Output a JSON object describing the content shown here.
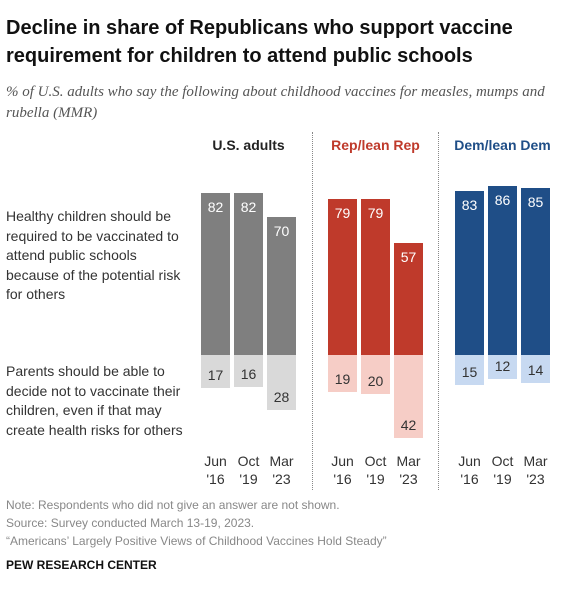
{
  "chart_data": {
    "type": "diverging-bar",
    "title": "Decline in share of Republicans who support vaccine requirement for children to attend public schools",
    "subtitle": "% of U.S. adults who say the following about childhood vaccines for measles, mumps and rubella (MMR)",
    "rows": [
      "Healthy children should be required to be vaccinated to attend public schools because of the potential risk for others",
      "Parents should be able to decide not to vaccinate their children, even if that may create health risks for others"
    ],
    "panels": [
      {
        "name": "U.S. adults",
        "header_color": "#222222",
        "categories": [
          "Jun\n'16",
          "Oct\n'19",
          "Mar\n'23"
        ],
        "series": [
          {
            "color": "#7f7f7f",
            "values": [
              82,
              82,
              70
            ]
          },
          {
            "color": "#d9d9d9",
            "values": [
              17,
              16,
              28
            ]
          }
        ]
      },
      {
        "name": "Rep/lean Rep",
        "header_color": "#bf3a2b",
        "categories": [
          "Jun\n'16",
          "Oct\n'19",
          "Mar\n'23"
        ],
        "series": [
          {
            "color": "#bf3a2b",
            "values": [
              79,
              79,
              57
            ]
          },
          {
            "color": "#f6cdc6",
            "values": [
              19,
              20,
              42
            ]
          }
        ]
      },
      {
        "name": "Dem/lean Dem",
        "header_color": "#1f4e87",
        "categories": [
          "Jun\n'16",
          "Oct\n'19",
          "Mar\n'23"
        ],
        "series": [
          {
            "color": "#1f4e87",
            "values": [
              83,
              86,
              85
            ]
          },
          {
            "color": "#c7d9f1",
            "values": [
              15,
              12,
              14
            ]
          }
        ]
      }
    ],
    "notes": [
      "Note: Respondents who did not give an answer are not shown.",
      "Source: Survey conducted March 13-19, 2023.",
      "“Americans’ Largely Positive Views of Childhood Vaccines Hold Steady”"
    ],
    "source_org": "PEW RESEARCH CENTER"
  }
}
